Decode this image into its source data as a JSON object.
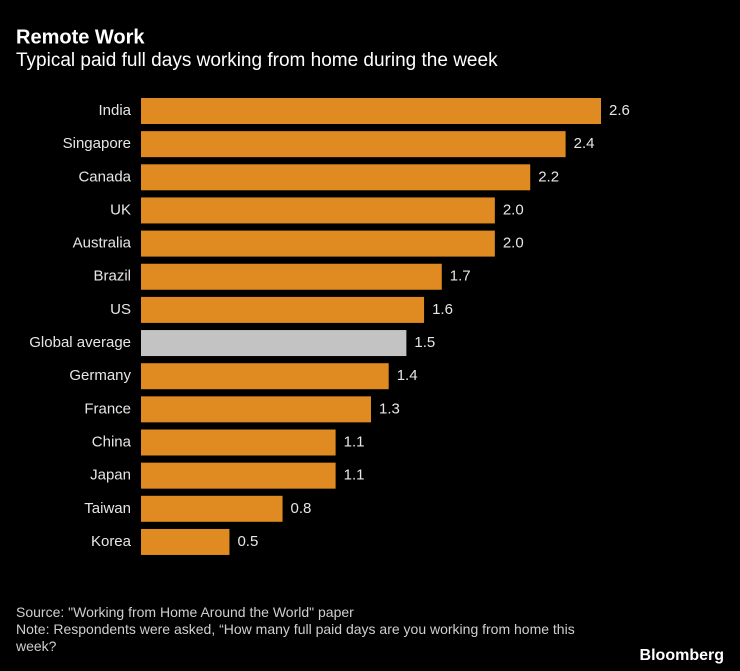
{
  "chart_data": {
    "type": "barh",
    "title": "Remote Work",
    "subtitle": "Typical paid full days working from home during the week",
    "categories": [
      "India",
      "Singapore",
      "Canada",
      "UK",
      "Australia",
      "Brazil",
      "US",
      "Global average",
      "Germany",
      "France",
      "China",
      "Japan",
      "Taiwan",
      "Korea"
    ],
    "values": [
      2.6,
      2.4,
      2.2,
      2.0,
      2.0,
      1.7,
      1.6,
      1.5,
      1.4,
      1.3,
      1.1,
      1.1,
      0.8,
      0.5
    ],
    "value_labels": [
      "2.6",
      "2.4",
      "2.2",
      "2.0",
      "2.0",
      "1.7",
      "1.6",
      "1.5",
      "1.4",
      "1.3",
      "1.1",
      "1.1",
      "0.8",
      "0.5"
    ],
    "colors": [
      "#e08a22",
      "#e08a22",
      "#e08a22",
      "#e08a22",
      "#e08a22",
      "#e08a22",
      "#e08a22",
      "#c3c3c3",
      "#e08a22",
      "#e08a22",
      "#e08a22",
      "#e08a22",
      "#e08a22",
      "#e08a22"
    ],
    "source": "Source: \"Working from Home Around the World\" paper",
    "note": "Note: Respondents were asked, “How many full paid days are you working from home this week?",
    "brand": "Bloomberg"
  }
}
